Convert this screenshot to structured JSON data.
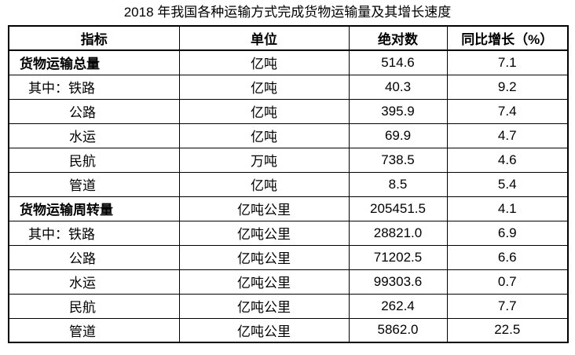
{
  "title": "2018 年我国各种运输方式完成货物运输量及其增长速度",
  "colors": {
    "text": "#000000",
    "border": "#000000",
    "background": "#ffffff"
  },
  "table": {
    "headers": [
      "指标",
      "单位",
      "绝对数",
      "同比增长（%）"
    ],
    "rows": [
      {
        "indicator": "货物运输总量",
        "unit": "亿吨",
        "value": "514.6",
        "growth": "7.1",
        "bold": true,
        "indent": 0
      },
      {
        "indicator": "其中：铁路",
        "unit": "亿吨",
        "value": "40.3",
        "growth": "9.2",
        "bold": false,
        "indent": 1
      },
      {
        "indicator": "公路",
        "unit": "亿吨",
        "value": "395.9",
        "growth": "7.4",
        "bold": false,
        "indent": 2
      },
      {
        "indicator": "水运",
        "unit": "亿吨",
        "value": "69.9",
        "growth": "4.7",
        "bold": false,
        "indent": 2
      },
      {
        "indicator": "民航",
        "unit": "万吨",
        "value": "738.5",
        "growth": "4.6",
        "bold": false,
        "indent": 2
      },
      {
        "indicator": "管道",
        "unit": "亿吨",
        "value": "8.5",
        "growth": "5.4",
        "bold": false,
        "indent": 2
      },
      {
        "indicator": "货物运输周转量",
        "unit": "亿吨公里",
        "value": "205451.5",
        "growth": "4.1",
        "bold": true,
        "indent": 0
      },
      {
        "indicator": "其中：铁路",
        "unit": "亿吨公里",
        "value": "28821.0",
        "growth": "6.9",
        "bold": false,
        "indent": 1
      },
      {
        "indicator": "公路",
        "unit": "亿吨公里",
        "value": "71202.5",
        "growth": "6.6",
        "bold": false,
        "indent": 2
      },
      {
        "indicator": "水运",
        "unit": "亿吨公里",
        "value": "99303.6",
        "growth": "0.7",
        "bold": false,
        "indent": 2
      },
      {
        "indicator": "民航",
        "unit": "亿吨公里",
        "value": "262.4",
        "growth": "7.7",
        "bold": false,
        "indent": 2
      },
      {
        "indicator": "管道",
        "unit": "亿吨公里",
        "value": "5862.0",
        "growth": "22.5",
        "bold": false,
        "indent": 2
      }
    ]
  }
}
